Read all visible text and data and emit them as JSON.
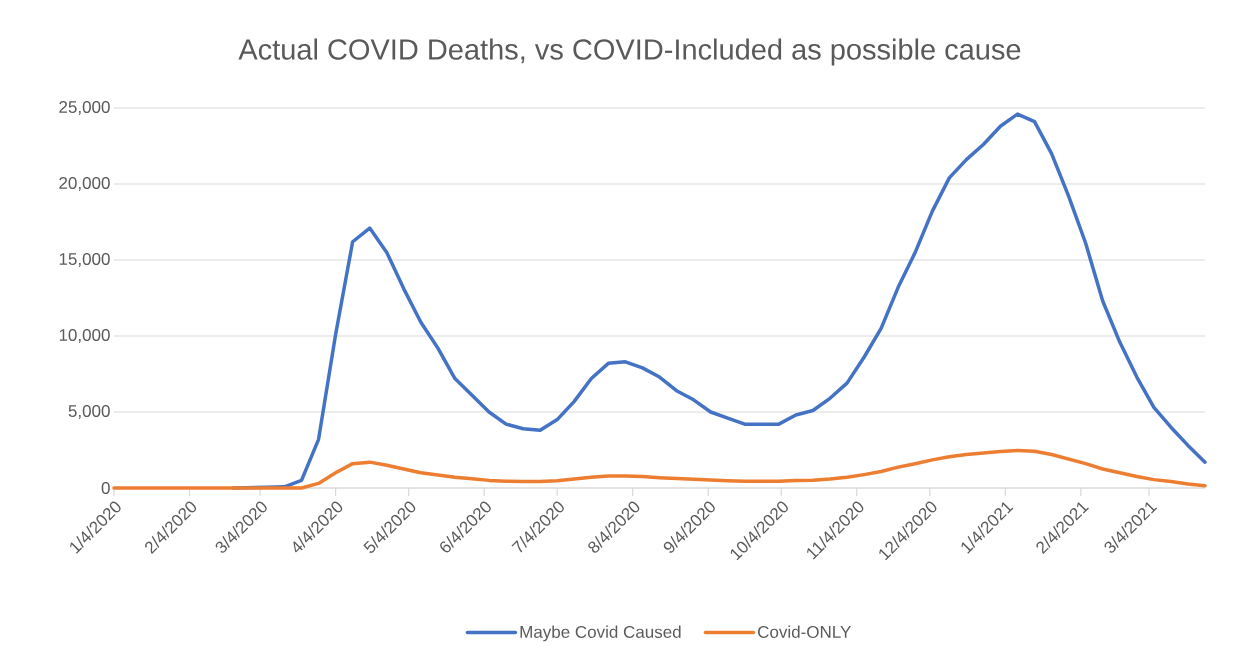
{
  "chart_data": {
    "type": "line",
    "title": "Actual COVID Deaths, vs  COVID-Included as possible cause",
    "x": [
      "2020-01-04",
      "2020-01-11",
      "2020-01-18",
      "2020-01-25",
      "2020-02-01",
      "2020-02-08",
      "2020-02-15",
      "2020-02-22",
      "2020-02-29",
      "2020-03-07",
      "2020-03-14",
      "2020-03-21",
      "2020-03-28",
      "2020-04-04",
      "2020-04-11",
      "2020-04-18",
      "2020-04-25",
      "2020-05-02",
      "2020-05-09",
      "2020-05-16",
      "2020-05-23",
      "2020-05-30",
      "2020-06-06",
      "2020-06-13",
      "2020-06-20",
      "2020-06-27",
      "2020-07-04",
      "2020-07-11",
      "2020-07-18",
      "2020-07-25",
      "2020-08-01",
      "2020-08-08",
      "2020-08-15",
      "2020-08-22",
      "2020-08-29",
      "2020-09-05",
      "2020-09-12",
      "2020-09-19",
      "2020-09-26",
      "2020-10-03",
      "2020-10-10",
      "2020-10-17",
      "2020-10-24",
      "2020-10-31",
      "2020-11-07",
      "2020-11-14",
      "2020-11-21",
      "2020-11-28",
      "2020-12-05",
      "2020-12-12",
      "2020-12-19",
      "2020-12-26",
      "2021-01-02",
      "2021-01-09",
      "2021-01-16",
      "2021-01-23",
      "2021-01-30",
      "2021-02-06",
      "2021-02-13",
      "2021-02-20",
      "2021-02-27",
      "2021-03-06",
      "2021-03-13",
      "2021-03-20",
      "2021-03-27"
    ],
    "series": [
      {
        "name": "Maybe Covid Caused",
        "color": "#4472c4",
        "values": [
          null,
          null,
          null,
          null,
          null,
          null,
          null,
          0,
          null,
          40,
          80,
          500,
          3200,
          10100,
          16200,
          17100,
          15500,
          13100,
          10900,
          9200,
          7200,
          6100,
          5000,
          4200,
          3900,
          3800,
          4500,
          5700,
          7200,
          8200,
          8300,
          7900,
          7300,
          6400,
          5800,
          5000,
          4600,
          4200,
          4200,
          4200,
          4800,
          5100,
          5900,
          6900,
          8600,
          10500,
          13200,
          15500,
          18200,
          20400,
          21600,
          22600,
          23800,
          24600,
          24100,
          22000,
          19200,
          16100,
          12300,
          9600,
          7300,
          5300,
          4000,
          2800,
          1700
        ]
      },
      {
        "name": "Covid-ONLY",
        "color": "#ed7d31",
        "values": [
          0,
          0,
          0,
          0,
          0,
          0,
          0,
          0,
          0,
          0,
          0,
          0,
          300,
          1000,
          1600,
          1700,
          1500,
          1250,
          1000,
          850,
          700,
          600,
          500,
          440,
          420,
          420,
          480,
          590,
          700,
          790,
          790,
          750,
          680,
          620,
          570,
          530,
          480,
          440,
          440,
          440,
          500,
          510,
          590,
          700,
          880,
          1080,
          1370,
          1600,
          1850,
          2050,
          2200,
          2300,
          2400,
          2470,
          2420,
          2200,
          1900,
          1600,
          1250,
          1000,
          750,
          550,
          420,
          260,
          150
        ]
      }
    ],
    "xlim": [
      "2020-01-04",
      "2021-03-27"
    ],
    "xticks": [
      {
        "value": "2020-01-04",
        "label": "1/4/2020"
      },
      {
        "value": "2020-02-04",
        "label": "2/4/2020"
      },
      {
        "value": "2020-03-04",
        "label": "3/4/2020"
      },
      {
        "value": "2020-04-04",
        "label": "4/4/2020"
      },
      {
        "value": "2020-05-04",
        "label": "5/4/2020"
      },
      {
        "value": "2020-06-04",
        "label": "6/4/2020"
      },
      {
        "value": "2020-07-04",
        "label": "7/4/2020"
      },
      {
        "value": "2020-08-04",
        "label": "8/4/2020"
      },
      {
        "value": "2020-09-04",
        "label": "9/4/2020"
      },
      {
        "value": "2020-10-04",
        "label": "10/4/2020"
      },
      {
        "value": "2020-11-04",
        "label": "11/4/2020"
      },
      {
        "value": "2020-12-04",
        "label": "12/4/2020"
      },
      {
        "value": "2021-01-04",
        "label": "1/4/2021"
      },
      {
        "value": "2021-02-04",
        "label": "2/4/2021"
      },
      {
        "value": "2021-03-04",
        "label": "3/4/2021"
      }
    ],
    "ylim": [
      0,
      25000
    ],
    "yticks": [
      0,
      {
        "value": 5000,
        "label": "5,000"
      },
      {
        "value": 10000,
        "label": "10,000"
      },
      {
        "value": 15000,
        "label": "15,000"
      },
      {
        "value": 20000,
        "label": "20,000"
      },
      {
        "value": 25000,
        "label": "25,000"
      }
    ],
    "grid": "y",
    "legend": "bottom",
    "line_style": "solid",
    "marker": "none"
  }
}
